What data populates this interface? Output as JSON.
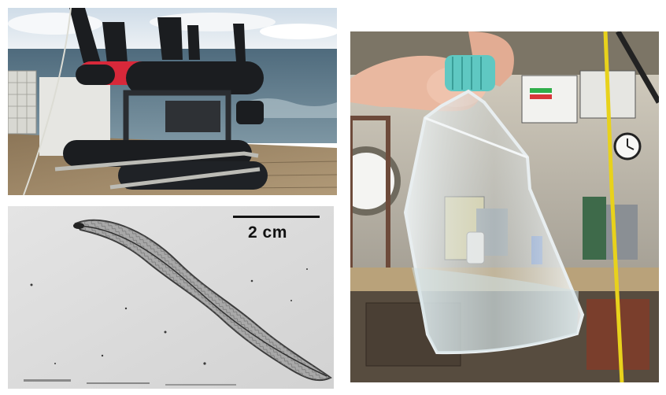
{
  "figure": {
    "panels": [
      {
        "id": "vehicle",
        "subject": "remotely-operated-vehicle-on-ship-deck"
      },
      {
        "id": "larva",
        "subject": "eel-larva-micrograph",
        "scale_bar_label": "2 cm"
      },
      {
        "id": "flask",
        "subject": "hand-holding-culture-flask-in-lab"
      }
    ]
  },
  "colors": {
    "sea": "#5d7a8c",
    "sky": "#e3ebf2",
    "deck": "#9b8466",
    "vehicle_body": "#1b1d20",
    "vehicle_accent": "#d8283a",
    "flask_cap": "#5fc8c2",
    "cable": "#e8d21c",
    "lab_wall": "#c9c3b6"
  }
}
